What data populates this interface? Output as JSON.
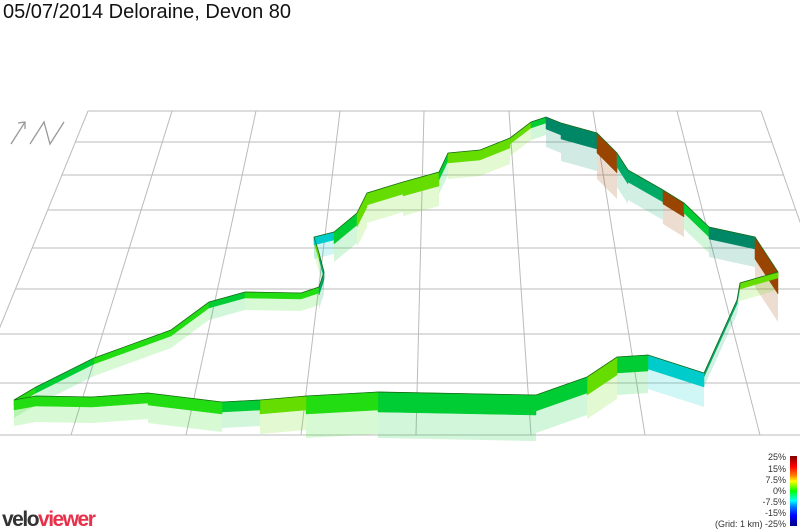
{
  "title": "05/07/2014 Deloraine, Devon 80",
  "north_label": "N",
  "legend": {
    "labels": [
      "25%",
      "15%",
      "7.5%",
      "0%",
      "-7.5%",
      "-15%",
      "-25%"
    ],
    "grid_note": "(Grid: 1 km)"
  },
  "logo": {
    "part1": "velo",
    "part2": "viewer"
  },
  "colors": {
    "route_main": "#22dd11",
    "route_alt": [
      "#00cc33",
      "#66dd00",
      "#00aa66",
      "#008866",
      "#994400",
      "#00cccc"
    ],
    "grid": "#bbbbbb",
    "logo_dark": "#333333",
    "logo_red": "#e8304a"
  }
}
